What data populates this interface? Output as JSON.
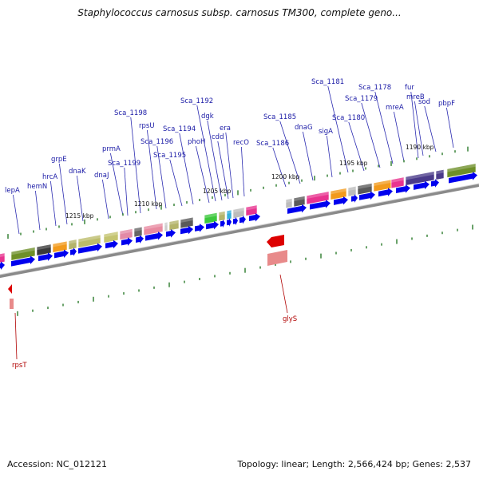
{
  "title": "Staphylococcus carnosus subsp. carnosus TM300, complete geno...",
  "footer": {
    "accession": "Accession: NC_012121",
    "summary": "Topology: linear; Length: 2,566,424 bp; Genes: 2,537"
  },
  "scale_labels": [
    "1215 kbp",
    "1210 kbp",
    "1205 kbp",
    "1200 kbp",
    "1195 kbp",
    "1190 kbp"
  ],
  "forward_genes": [
    "lepA",
    "hemN",
    "hrcA",
    "grpE",
    "dnaK",
    "dnaJ",
    "prmA",
    "Sca_1199",
    "Sca_1198",
    "rpsU",
    "Sca_1196",
    "Sca_1195",
    "Sca_1194",
    "phoH",
    "Sca_1192",
    "dgk",
    "cdd",
    "era",
    "recO",
    "Sca_1186",
    "Sca_1185",
    "dnaG",
    "sigA",
    "Sca_1181",
    "Sca_1180",
    "Sca_1179",
    "Sca_1178",
    "mreA",
    "fur",
    "mreB",
    "sod",
    "pbpF"
  ],
  "reverse_genes": [
    "rpsT",
    "glyS"
  ],
  "colors": {
    "forward_arrow": "#0000ee",
    "reverse_arrow": "#dd0000",
    "backbone": "#8a8a8a",
    "tick": "#2a7a2a",
    "forward_label": "#1a1aa6",
    "reverse_label": "#b00000"
  }
}
